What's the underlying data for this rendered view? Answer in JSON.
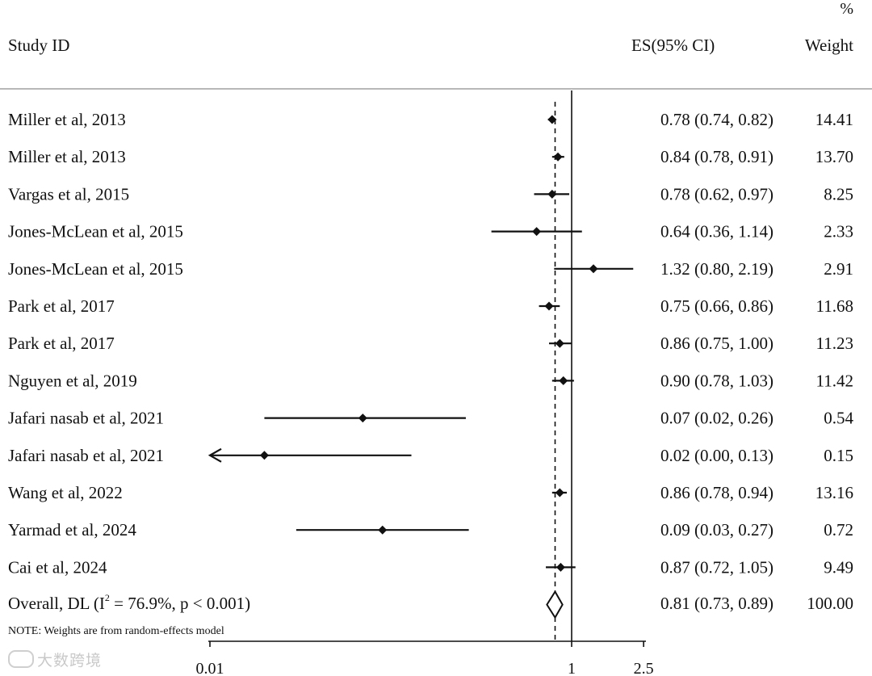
{
  "header": {
    "study_label": "Study ID",
    "es_label": "ES(95% CI)",
    "pct_symbol": "%",
    "weight_label": "Weight"
  },
  "note": "NOTE: Weights are from random-effects model",
  "watermark": "大数跨境",
  "chart_data": {
    "type": "forest",
    "x_scale": "log",
    "x_ticks": [
      "0.01",
      "1",
      "2.5"
    ],
    "x_tick_values": [
      0.01,
      1,
      2.5
    ],
    "null_line": 1,
    "overall_line": 0.81,
    "studies": [
      {
        "label": "Miller et al, 2013",
        "es": 0.78,
        "lo": 0.74,
        "hi": 0.82,
        "ci_text": "0.78 (0.74, 0.82)",
        "weight": "14.41"
      },
      {
        "label": "Miller et al, 2013",
        "es": 0.84,
        "lo": 0.78,
        "hi": 0.91,
        "ci_text": "0.84 (0.78, 0.91)",
        "weight": "13.70"
      },
      {
        "label": "Vargas et al, 2015",
        "es": 0.78,
        "lo": 0.62,
        "hi": 0.97,
        "ci_text": "0.78 (0.62, 0.97)",
        "weight": "8.25"
      },
      {
        "label": "Jones-McLean et al, 2015",
        "es": 0.64,
        "lo": 0.36,
        "hi": 1.14,
        "ci_text": "0.64 (0.36, 1.14)",
        "weight": "2.33"
      },
      {
        "label": "Jones-McLean et al, 2015",
        "es": 1.32,
        "lo": 0.8,
        "hi": 2.19,
        "ci_text": "1.32 (0.80, 2.19)",
        "weight": "2.91"
      },
      {
        "label": "Park et al, 2017",
        "es": 0.75,
        "lo": 0.66,
        "hi": 0.86,
        "ci_text": "0.75 (0.66, 0.86)",
        "weight": "11.68"
      },
      {
        "label": "Park et al, 2017",
        "es": 0.86,
        "lo": 0.75,
        "hi": 1.0,
        "ci_text": "0.86 (0.75, 1.00)",
        "weight": "11.23"
      },
      {
        "label": "Nguyen et al, 2019",
        "es": 0.9,
        "lo": 0.78,
        "hi": 1.03,
        "ci_text": "0.90 (0.78, 1.03)",
        "weight": "11.42"
      },
      {
        "label": "Jafari nasab et al, 2021",
        "es": 0.07,
        "lo": 0.02,
        "hi": 0.26,
        "ci_text": "0.07 (0.02, 0.26)",
        "weight": "0.54"
      },
      {
        "label": "Jafari nasab et al, 2021",
        "es": 0.02,
        "lo": 0.0,
        "hi": 0.13,
        "ci_text": "0.02 (0.00, 0.13)",
        "weight": "0.15",
        "arrow_left": true
      },
      {
        "label": "Wang et al, 2022",
        "es": 0.86,
        "lo": 0.78,
        "hi": 0.94,
        "ci_text": "0.86 (0.78, 0.94)",
        "weight": "13.16"
      },
      {
        "label": "Yarmad et al, 2024",
        "es": 0.09,
        "lo": 0.03,
        "hi": 0.27,
        "ci_text": "0.09 (0.03, 0.27)",
        "weight": "0.72"
      },
      {
        "label": "Cai et al, 2024",
        "es": 0.87,
        "lo": 0.72,
        "hi": 1.05,
        "ci_text": "0.87 (0.72, 1.05)",
        "weight": "9.49"
      }
    ],
    "overall": {
      "label_prefix": "Overall, DL (I",
      "label_sup": "2",
      "label_suffix": " = 76.9%, p < 0.001)",
      "es": 0.81,
      "lo": 0.73,
      "hi": 0.89,
      "ci_text": "0.81 (0.73, 0.89)",
      "weight": "100.00"
    }
  }
}
